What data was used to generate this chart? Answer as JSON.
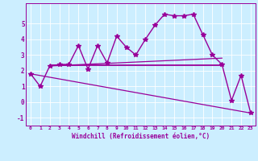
{
  "background_color": "#cceeff",
  "line_color": "#990099",
  "xlim": [
    -0.5,
    23.5
  ],
  "ylim": [
    -1.5,
    6.3
  ],
  "xlabel": "Windchill (Refroidissement éolien,°C)",
  "yticks": [
    -1,
    0,
    1,
    2,
    3,
    4,
    5
  ],
  "xticks": [
    0,
    1,
    2,
    3,
    4,
    5,
    6,
    7,
    8,
    9,
    10,
    11,
    12,
    13,
    14,
    15,
    16,
    17,
    18,
    19,
    20,
    21,
    22,
    23
  ],
  "series": [
    {
      "x": [
        0,
        1,
        2,
        3,
        4,
        5,
        6,
        7,
        8,
        9,
        10,
        11,
        12,
        13,
        14,
        15,
        16,
        17,
        18,
        19,
        20,
        21,
        22,
        23
      ],
      "y": [
        1.8,
        1.0,
        2.3,
        2.4,
        2.4,
        3.6,
        2.1,
        3.6,
        2.5,
        4.2,
        3.5,
        3.0,
        4.0,
        4.9,
        5.6,
        5.5,
        5.5,
        5.6,
        4.3,
        3.0,
        2.4,
        0.1,
        1.7,
        -0.7
      ],
      "marker": "*",
      "markersize": 4,
      "linewidth": 1.0
    },
    {
      "x": [
        0,
        23
      ],
      "y": [
        1.8,
        -0.7
      ],
      "marker": null,
      "markersize": 0,
      "linewidth": 0.9
    },
    {
      "x": [
        2,
        20
      ],
      "y": [
        2.35,
        2.35
      ],
      "marker": null,
      "markersize": 0,
      "linewidth": 1.3
    },
    {
      "x": [
        2,
        20
      ],
      "y": [
        2.3,
        2.8
      ],
      "marker": null,
      "markersize": 0,
      "linewidth": 0.9
    }
  ]
}
